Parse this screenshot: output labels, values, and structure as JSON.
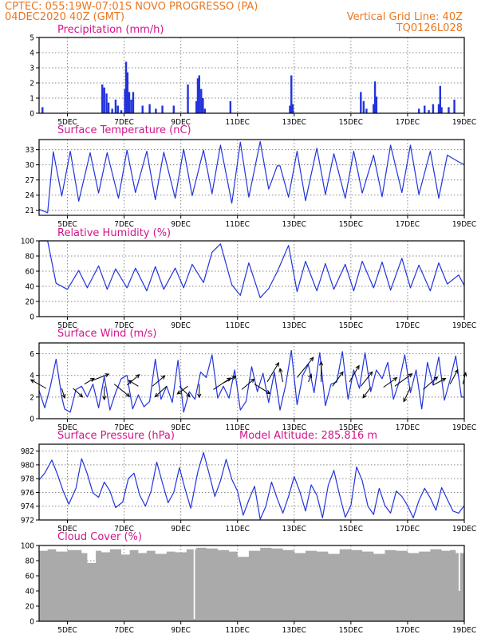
{
  "header": {
    "line1": "CPTEC:   055:19W-07:01S   NOVO PROGRESSO (PA)",
    "line2_left": "04DEC2020 40Z (GMT)",
    "line2_right": "Vertical Grid Line: 40Z",
    "line3_right": "TQ0126L028"
  },
  "colors": {
    "header": "#e87722",
    "title": "#d4148c",
    "line": "#2233dd",
    "cloud": "#aaaaaa",
    "arrow": "#000000"
  },
  "chart_data": [
    {
      "id": "precipitation",
      "type": "bar",
      "title": "Precipitation (mm/h)",
      "ylim": [
        0,
        5
      ],
      "yticks": [
        0,
        1,
        2,
        3,
        4,
        5
      ],
      "xlim": [
        4.0,
        19.0
      ],
      "xticks": [
        {
          "x": 5,
          "label": "5DEC"
        },
        {
          "x": 7,
          "label": "7DEC"
        },
        {
          "x": 9,
          "label": "9DEC"
        },
        {
          "x": 11,
          "label": "11DEC"
        },
        {
          "x": 13,
          "label": "13DEC"
        },
        {
          "x": 15,
          "label": "15DEC"
        },
        {
          "x": 17,
          "label": "17DEC"
        },
        {
          "x": 19,
          "label": "19DEC"
        }
      ],
      "x": [
        4.12,
        6.23,
        6.3,
        6.38,
        6.45,
        6.58,
        6.7,
        6.78,
        6.9,
        7.03,
        7.07,
        7.12,
        7.18,
        7.25,
        7.32,
        7.65,
        7.9,
        8.12,
        8.35,
        8.75,
        9.25,
        9.55,
        9.6,
        9.65,
        9.72,
        9.78,
        9.85,
        10.75,
        12.85,
        12.9,
        12.95,
        15.35,
        15.45,
        15.55,
        15.8,
        15.85,
        15.9,
        17.4,
        17.6,
        17.75,
        17.9,
        18.1,
        18.15,
        18.2,
        18.45,
        18.65
      ],
      "values": [
        0.4,
        1.9,
        1.7,
        1.3,
        0.7,
        0.3,
        0.9,
        0.5,
        0.2,
        1.6,
        3.4,
        2.7,
        1.4,
        0.9,
        1.4,
        0.5,
        0.6,
        0.3,
        0.5,
        0.5,
        1.9,
        0.8,
        2.3,
        2.5,
        1.6,
        1.0,
        0.3,
        0.8,
        0.5,
        2.5,
        0.6,
        1.4,
        0.8,
        0.3,
        0.6,
        2.1,
        1.1,
        0.3,
        0.5,
        0.2,
        0.6,
        0.6,
        1.8,
        0.4,
        0.4,
        0.9
      ]
    },
    {
      "id": "temperature",
      "type": "line",
      "title": "Surface Temperature (nC)",
      "ylim": [
        20,
        35
      ],
      "yticks": [
        21,
        24,
        27,
        30,
        33
      ],
      "xlim": [
        4.0,
        19.0
      ],
      "xticks": [
        {
          "x": 5,
          "label": "5DEC"
        },
        {
          "x": 7,
          "label": "7DEC"
        },
        {
          "x": 9,
          "label": "9DEC"
        },
        {
          "x": 11,
          "label": "11DEC"
        },
        {
          "x": 13,
          "label": "13DEC"
        },
        {
          "x": 15,
          "label": "15DEC"
        },
        {
          "x": 17,
          "label": "17DEC"
        },
        {
          "x": 19,
          "label": "19DEC"
        }
      ],
      "x": [
        4.0,
        4.3,
        4.5,
        4.8,
        5.1,
        5.4,
        5.8,
        6.1,
        6.4,
        6.8,
        7.1,
        7.4,
        7.8,
        8.1,
        8.4,
        8.8,
        9.1,
        9.4,
        9.8,
        10.1,
        10.4,
        10.8,
        11.1,
        11.4,
        11.8,
        12.1,
        12.4,
        12.5,
        12.8,
        13.1,
        13.4,
        13.8,
        14.1,
        14.4,
        14.8,
        15.1,
        15.4,
        15.8,
        16.1,
        16.4,
        16.8,
        17.1,
        17.4,
        17.8,
        18.1,
        18.4,
        18.8,
        19.0
      ],
      "values": [
        21.2,
        20.5,
        32.6,
        23.8,
        32.7,
        22.8,
        32.4,
        24.4,
        32.4,
        23.4,
        32.9,
        24.5,
        32.7,
        23.1,
        32.5,
        23.4,
        33.1,
        23.9,
        32.9,
        24.3,
        33.9,
        22.4,
        34.5,
        23.6,
        34.6,
        25.2,
        29.8,
        29.8,
        23.6,
        32.7,
        22.9,
        33.3,
        24.1,
        32.2,
        23.4,
        32.7,
        24.4,
        31.9,
        23.7,
        33.9,
        24.5,
        33.9,
        24.1,
        32.7,
        23.4,
        31.9,
        30.6,
        30.0
      ]
    },
    {
      "id": "humidity",
      "type": "line",
      "title": "Relative Humidity (%)",
      "ylim": [
        0,
        100
      ],
      "yticks": [
        0,
        20,
        40,
        60,
        80,
        100
      ],
      "xlim": [
        4.0,
        19.0
      ],
      "xticks": [
        {
          "x": 5,
          "label": "5DEC"
        },
        {
          "x": 7,
          "label": "7DEC"
        },
        {
          "x": 9,
          "label": "9DEC"
        },
        {
          "x": 11,
          "label": "11DEC"
        },
        {
          "x": 13,
          "label": "13DEC"
        },
        {
          "x": 15,
          "label": "15DEC"
        },
        {
          "x": 17,
          "label": "17DEC"
        },
        {
          "x": 19,
          "label": "19DEC"
        }
      ],
      "x": [
        4.0,
        4.3,
        4.6,
        5.0,
        5.4,
        5.7,
        6.1,
        6.4,
        6.7,
        7.1,
        7.4,
        7.8,
        8.1,
        8.4,
        8.8,
        9.1,
        9.4,
        9.8,
        10.1,
        10.4,
        10.8,
        11.1,
        11.4,
        11.8,
        12.1,
        12.4,
        12.8,
        13.1,
        13.4,
        13.8,
        14.1,
        14.4,
        14.8,
        15.1,
        15.4,
        15.8,
        16.1,
        16.4,
        16.8,
        17.1,
        17.4,
        17.8,
        18.1,
        18.4,
        18.8,
        19.0
      ],
      "values": [
        100,
        100,
        44,
        36,
        61,
        38,
        67,
        36,
        63,
        38,
        64,
        34,
        66,
        36,
        64,
        38,
        69,
        45,
        85,
        96,
        42,
        28,
        71,
        25,
        37,
        59,
        94,
        33,
        73,
        34,
        70,
        36,
        69,
        34,
        73,
        38,
        72,
        35,
        77,
        38,
        68,
        34,
        71,
        43,
        55,
        41
      ]
    },
    {
      "id": "wind",
      "type": "line",
      "title": "Surface Wind (m/s)",
      "ylim": [
        0,
        7
      ],
      "yticks": [
        0,
        2,
        4,
        6
      ],
      "xlim": [
        4.0,
        19.0
      ],
      "xticks": [
        {
          "x": 5,
          "label": "5DEC"
        },
        {
          "x": 7,
          "label": "7DEC"
        },
        {
          "x": 9,
          "label": "9DEC"
        },
        {
          "x": 11,
          "label": "11DEC"
        },
        {
          "x": 13,
          "label": "13DEC"
        },
        {
          "x": 15,
          "label": "15DEC"
        },
        {
          "x": 17,
          "label": "17DEC"
        },
        {
          "x": 19,
          "label": "19DEC"
        }
      ],
      "x": [
        4.0,
        4.2,
        4.4,
        4.6,
        4.8,
        4.9,
        5.1,
        5.3,
        5.5,
        5.7,
        5.9,
        6.1,
        6.3,
        6.5,
        6.7,
        6.9,
        7.1,
        7.3,
        7.5,
        7.7,
        7.9,
        8.1,
        8.3,
        8.5,
        8.7,
        8.9,
        9.1,
        9.3,
        9.5,
        9.7,
        9.9,
        10.1,
        10.3,
        10.5,
        10.7,
        10.9,
        11.1,
        11.3,
        11.5,
        11.7,
        11.9,
        12.1,
        12.3,
        12.5,
        12.7,
        12.9,
        13.1,
        13.3,
        13.5,
        13.7,
        13.9,
        14.1,
        14.3,
        14.5,
        14.7,
        14.9,
        15.1,
        15.3,
        15.5,
        15.7,
        15.9,
        16.1,
        16.3,
        16.5,
        16.7,
        16.9,
        17.1,
        17.3,
        17.5,
        17.7,
        17.9,
        18.1,
        18.3,
        18.5,
        18.7,
        18.9,
        19.0
      ],
      "values": [
        2.6,
        1.0,
        3.0,
        5.5,
        2.0,
        0.9,
        0.6,
        2.7,
        3.0,
        2.0,
        3.2,
        1.0,
        3.9,
        0.8,
        2.4,
        3.7,
        4.0,
        0.9,
        2.2,
        1.1,
        1.6,
        5.5,
        1.8,
        3.0,
        1.5,
        5.4,
        0.6,
        2.5,
        1.8,
        4.3,
        3.8,
        5.9,
        1.9,
        3.0,
        1.9,
        4.5,
        0.8,
        1.6,
        4.8,
        2.5,
        4.2,
        1.5,
        4.3,
        0.8,
        3.1,
        6.3,
        1.3,
        4.0,
        5.0,
        2.4,
        6.1,
        1.2,
        3.2,
        3.4,
        6.2,
        1.8,
        4.5,
        2.8,
        6.1,
        2.5,
        4.5,
        3.7,
        5.2,
        1.8,
        3.4,
        5.9,
        2.4,
        4.5,
        0.9,
        5.2,
        3.1,
        5.7,
        1.7,
        3.6,
        5.8,
        2.0,
        2.0
      ],
      "arrows": {
        "x": [
          4.25,
          4.8,
          5.2,
          5.6,
          5.85,
          6.3,
          6.65,
          7.1,
          7.5,
          8.0,
          8.5,
          8.95,
          9.25,
          9.65,
          10.15,
          10.5,
          11.15,
          11.6,
          12.05,
          12.6,
          13.1,
          13.5,
          13.95,
          14.35,
          14.95,
          15.35,
          15.7,
          16.15,
          16.55,
          17.1,
          17.55,
          17.9,
          18.5,
          18.95
        ],
        "y": [
          2.8,
          2.8,
          2.8,
          3.2,
          3.5,
          3.0,
          3.2,
          3.1,
          3.0,
          3.0,
          3.0,
          3.0,
          3.0,
          3.2,
          2.7,
          3.3,
          2.7,
          3.2,
          3.4,
          3.4,
          3.8,
          3.4,
          3.4,
          3.0,
          3.4,
          3.0,
          2.9,
          2.9,
          3.0,
          2.9,
          2.7,
          3.1,
          3.2,
          3.2
        ],
        "u": [
          -0.8,
          0.15,
          0.5,
          0.5,
          0.9,
          0.0,
          0.8,
          0.65,
          -0.5,
          0.65,
          -0.6,
          0.55,
          -0.55,
          0.0,
          0.9,
          0.65,
          0.65,
          0.8,
          0.6,
          -0.15,
          0.85,
          0.15,
          0.0,
          0.55,
          0.5,
          0.6,
          -0.4,
          0.7,
          0.9,
          -0.35,
          0.75,
          0.65,
          0.4,
          0.15
        ],
        "v": [
          0.45,
          -0.5,
          -0.45,
          0.3,
          0.35,
          -0.7,
          -0.65,
          0.55,
          0.3,
          0.55,
          -0.55,
          -0.55,
          -0.4,
          -0.7,
          0.6,
          0.35,
          0.55,
          -0.5,
          1.0,
          0.7,
          1.05,
          0.4,
          1.05,
          0.75,
          0.85,
          0.75,
          -0.55,
          0.5,
          0.65,
          -0.75,
          0.65,
          0.35,
          0.75,
          0.6
        ]
      }
    },
    {
      "id": "pressure",
      "type": "line",
      "title": "Surface Pressure (hPa)",
      "annotation": "Model Altitude: 285.816 m",
      "ylim": [
        972,
        983
      ],
      "yticks": [
        972,
        974,
        976,
        978,
        980,
        982
      ],
      "xlim": [
        4.0,
        19.0
      ],
      "xticks": [
        {
          "x": 5,
          "label": "5DEC"
        },
        {
          "x": 7,
          "label": "7DEC"
        },
        {
          "x": 9,
          "label": "9DEC"
        },
        {
          "x": 11,
          "label": "11DEC"
        },
        {
          "x": 13,
          "label": "13DEC"
        },
        {
          "x": 15,
          "label": "15DEC"
        },
        {
          "x": 17,
          "label": "17DEC"
        },
        {
          "x": 19,
          "label": "19DEC"
        }
      ],
      "x": [
        4.0,
        4.2,
        4.45,
        4.65,
        4.85,
        5.05,
        5.3,
        5.5,
        5.7,
        5.9,
        6.1,
        6.3,
        6.5,
        6.7,
        6.95,
        7.15,
        7.35,
        7.55,
        7.75,
        7.95,
        8.15,
        8.35,
        8.55,
        8.75,
        8.95,
        9.15,
        9.35,
        9.6,
        9.8,
        10.0,
        10.2,
        10.4,
        10.6,
        10.8,
        11.0,
        11.2,
        11.4,
        11.6,
        11.8,
        12.0,
        12.2,
        12.4,
        12.6,
        12.8,
        13.0,
        13.2,
        13.4,
        13.6,
        13.8,
        14.0,
        14.2,
        14.4,
        14.6,
        14.8,
        15.0,
        15.2,
        15.4,
        15.6,
        15.8,
        16.0,
        16.2,
        16.4,
        16.6,
        16.8,
        17.0,
        17.2,
        17.4,
        17.6,
        17.8,
        18.0,
        18.2,
        18.4,
        18.6,
        18.8,
        19.0
      ],
      "values": [
        977.8,
        978.8,
        980.7,
        978.6,
        976.2,
        974.3,
        976.6,
        980.9,
        978.7,
        975.9,
        975.3,
        977.5,
        976.2,
        973.8,
        974.6,
        978.0,
        978.8,
        975.6,
        974.0,
        976.2,
        980.4,
        977.4,
        974.5,
        976.0,
        979.6,
        976.5,
        973.7,
        979.0,
        981.8,
        978.7,
        975.4,
        977.7,
        980.8,
        977.9,
        976.2,
        972.7,
        974.9,
        976.9,
        972.1,
        974.0,
        977.5,
        975.1,
        973.0,
        975.4,
        978.3,
        976.1,
        973.3,
        977.1,
        975.6,
        972.3,
        977.0,
        979.2,
        975.6,
        972.4,
        974.1,
        979.7,
        977.7,
        974.0,
        972.8,
        976.6,
        974.1,
        973.0,
        976.2,
        975.4,
        974.1,
        972.3,
        974.8,
        976.6,
        975.2,
        973.4,
        976.7,
        975.0,
        973.3,
        973.0,
        974.1
      ]
    },
    {
      "id": "cloud",
      "type": "area",
      "title": "Cloud Cover (%)",
      "ylim": [
        0,
        100
      ],
      "yticks": [
        0,
        20,
        40,
        60,
        80,
        100
      ],
      "xlim": [
        4.0,
        19.0
      ],
      "xticks": [
        {
          "x": 5,
          "label": "5DEC"
        },
        {
          "x": 7,
          "label": "7DEC"
        },
        {
          "x": 9,
          "label": "9DEC"
        },
        {
          "x": 11,
          "label": "11DEC"
        },
        {
          "x": 13,
          "label": "13DEC"
        },
        {
          "x": 15,
          "label": "15DEC"
        },
        {
          "x": 17,
          "label": "17DEC"
        },
        {
          "x": 19,
          "label": "19DEC"
        }
      ],
      "x": [
        4.0,
        4.3,
        4.6,
        5.0,
        5.5,
        5.7,
        6.0,
        6.2,
        6.5,
        6.9,
        7.2,
        7.5,
        7.8,
        8.1,
        8.5,
        8.8,
        9.2,
        9.45,
        9.5,
        9.55,
        9.9,
        10.3,
        10.7,
        11.0,
        11.4,
        11.8,
        12.2,
        12.6,
        13.0,
        13.4,
        13.8,
        14.2,
        14.6,
        15.0,
        15.4,
        15.8,
        16.2,
        16.6,
        17.0,
        17.4,
        17.8,
        18.2,
        18.5,
        18.7,
        18.8,
        18.85,
        19.0
      ],
      "values": [
        93,
        95,
        92,
        94,
        90,
        77,
        93,
        91,
        95,
        88,
        94,
        90,
        93,
        89,
        92,
        91,
        95,
        3,
        95,
        97,
        96,
        94,
        92,
        85,
        93,
        97,
        96,
        94,
        90,
        93,
        92,
        89,
        95,
        94,
        92,
        89,
        94,
        93,
        90,
        92,
        95,
        93,
        94,
        90,
        40,
        90,
        90
      ]
    }
  ]
}
